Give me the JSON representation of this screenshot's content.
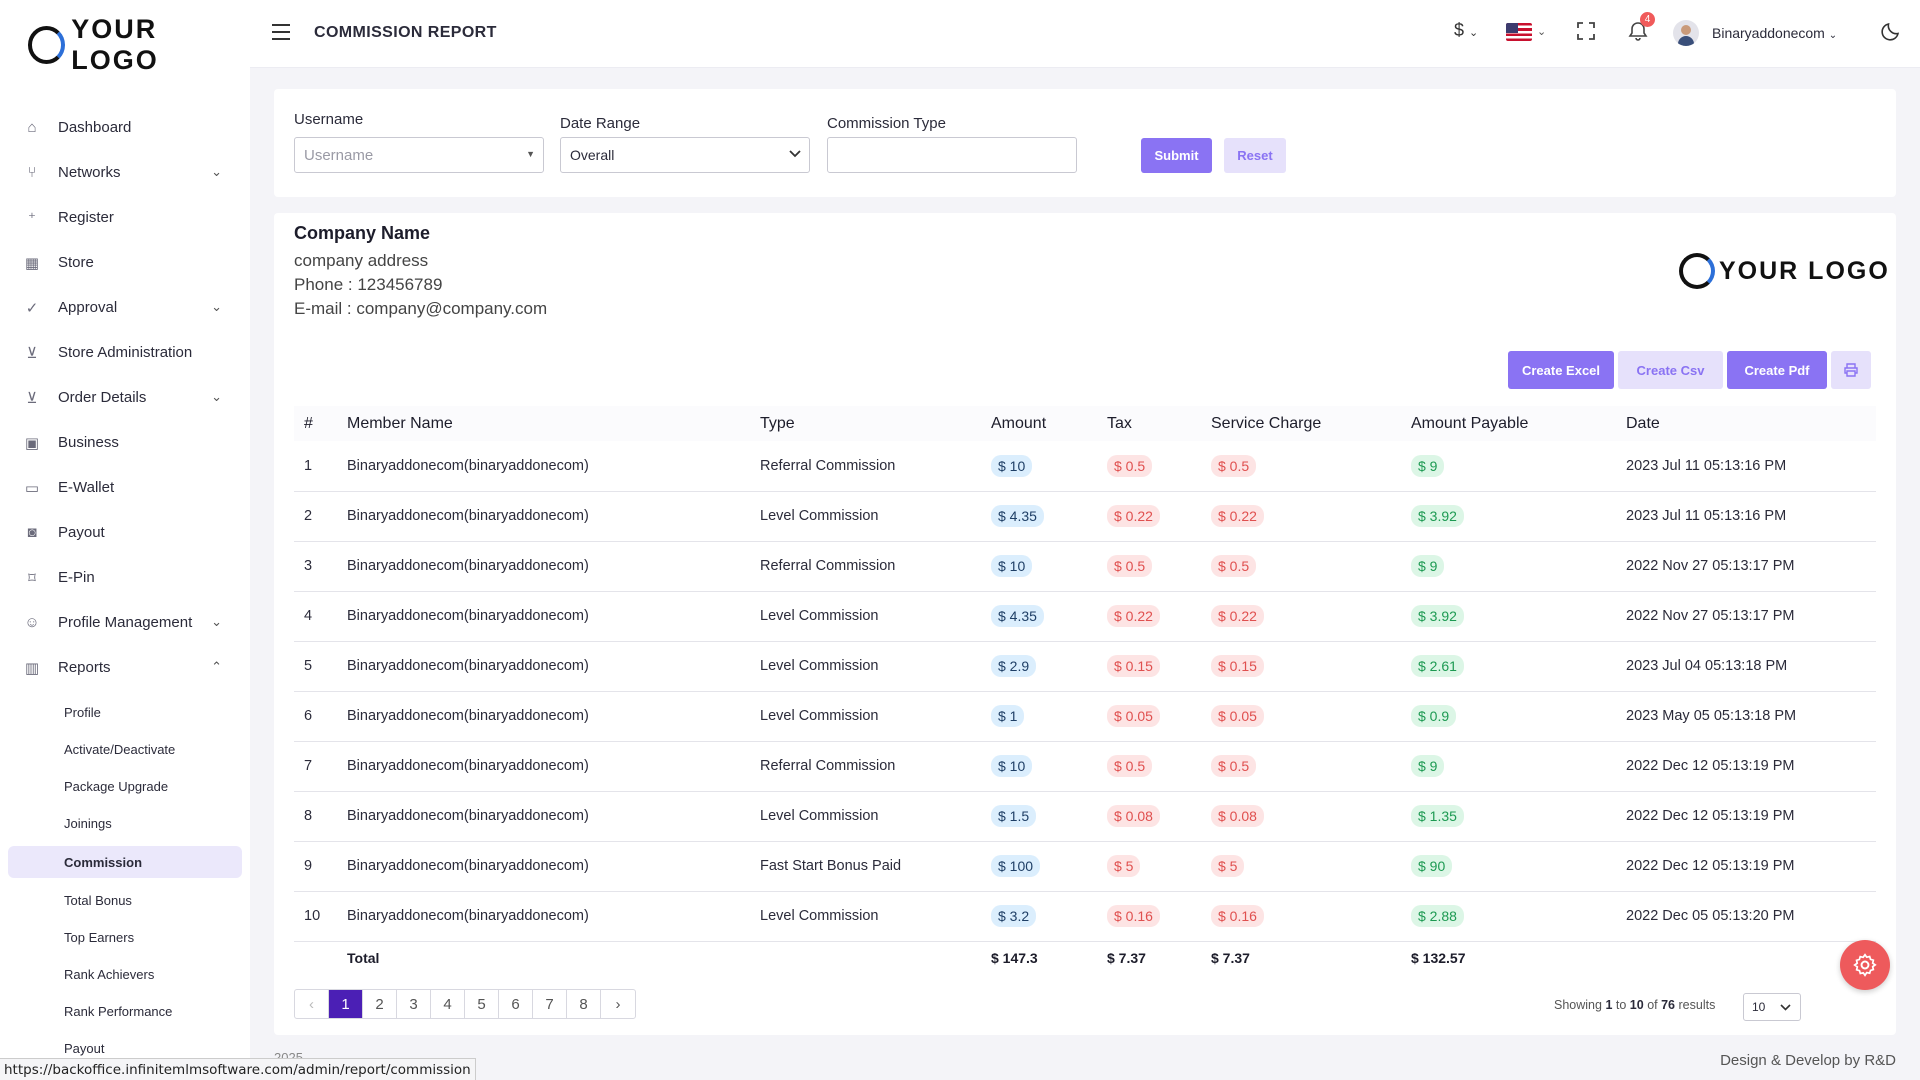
{
  "logo": {
    "text": "YOUR LOGO"
  },
  "sidebar": {
    "items": [
      {
        "label": "Dashboard",
        "icon": "home-icon"
      },
      {
        "label": "Networks",
        "icon": "network-icon",
        "chevron": "down"
      },
      {
        "label": "Register",
        "icon": "user-plus-icon"
      },
      {
        "label": "Store",
        "icon": "store-icon"
      },
      {
        "label": "Approval",
        "icon": "user-check-icon",
        "chevron": "down"
      },
      {
        "label": "Store Administration",
        "icon": "cart-icon"
      },
      {
        "label": "Order Details",
        "icon": "cart-outline-icon",
        "chevron": "down"
      },
      {
        "label": "Business",
        "icon": "briefcase-icon"
      },
      {
        "label": "E-Wallet",
        "icon": "wallet-icon"
      },
      {
        "label": "Payout",
        "icon": "payout-icon"
      },
      {
        "label": "E-Pin",
        "icon": "pin-icon"
      },
      {
        "label": "Profile Management",
        "icon": "user-icon",
        "chevron": "down"
      },
      {
        "label": "Reports",
        "icon": "bar-chart-icon",
        "chevron": "up"
      }
    ],
    "subitems": [
      {
        "label": "Profile"
      },
      {
        "label": "Activate/Deactivate"
      },
      {
        "label": "Package Upgrade"
      },
      {
        "label": "Joinings"
      },
      {
        "label": "Commission",
        "active": true
      },
      {
        "label": "Total Bonus"
      },
      {
        "label": "Top Earners"
      },
      {
        "label": "Rank Achievers"
      },
      {
        "label": "Rank Performance"
      },
      {
        "label": "Payout"
      }
    ]
  },
  "header": {
    "title": "COMMISSION REPORT",
    "currency": "$",
    "notification_count": "4",
    "username": "Binaryaddonecom"
  },
  "filter": {
    "username_label": "Username",
    "username_placeholder": "Username",
    "date_range_label": "Date Range",
    "date_range_value": "Overall",
    "commission_type_label": "Commission Type",
    "commission_type_value": "",
    "submit_label": "Submit",
    "reset_label": "Reset"
  },
  "company": {
    "name": "Company Name",
    "address": "company address",
    "phone": "Phone : 123456789",
    "email": "E-mail : company@company.com"
  },
  "export": {
    "excel": "Create Excel",
    "csv": "Create Csv",
    "pdf": "Create Pdf"
  },
  "table": {
    "headers": [
      "#",
      "Member Name",
      "Type",
      "Amount",
      "Tax",
      "Service Charge",
      "Amount Payable",
      "Date"
    ],
    "rows": [
      {
        "n": "1",
        "member": "Binaryaddonecom(binaryaddonecom)",
        "type": "Referral Commission",
        "amount": "$ 10",
        "tax": "$ 0.5",
        "service": "$ 0.5",
        "payable": "$ 9",
        "date": "2023 Jul 11 05:13:16 PM"
      },
      {
        "n": "2",
        "member": "Binaryaddonecom(binaryaddonecom)",
        "type": "Level Commission",
        "amount": "$ 4.35",
        "tax": "$ 0.22",
        "service": "$ 0.22",
        "payable": "$ 3.92",
        "date": "2023 Jul 11 05:13:16 PM"
      },
      {
        "n": "3",
        "member": "Binaryaddonecom(binaryaddonecom)",
        "type": "Referral Commission",
        "amount": "$ 10",
        "tax": "$ 0.5",
        "service": "$ 0.5",
        "payable": "$ 9",
        "date": "2022 Nov 27 05:13:17 PM"
      },
      {
        "n": "4",
        "member": "Binaryaddonecom(binaryaddonecom)",
        "type": "Level Commission",
        "amount": "$ 4.35",
        "tax": "$ 0.22",
        "service": "$ 0.22",
        "payable": "$ 3.92",
        "date": "2022 Nov 27 05:13:17 PM"
      },
      {
        "n": "5",
        "member": "Binaryaddonecom(binaryaddonecom)",
        "type": "Level Commission",
        "amount": "$ 2.9",
        "tax": "$ 0.15",
        "service": "$ 0.15",
        "payable": "$ 2.61",
        "date": "2023 Jul 04 05:13:18 PM"
      },
      {
        "n": "6",
        "member": "Binaryaddonecom(binaryaddonecom)",
        "type": "Level Commission",
        "amount": "$ 1",
        "tax": "$ 0.05",
        "service": "$ 0.05",
        "payable": "$ 0.9",
        "date": "2023 May 05 05:13:18 PM"
      },
      {
        "n": "7",
        "member": "Binaryaddonecom(binaryaddonecom)",
        "type": "Referral Commission",
        "amount": "$ 10",
        "tax": "$ 0.5",
        "service": "$ 0.5",
        "payable": "$ 9",
        "date": "2022 Dec 12 05:13:19 PM"
      },
      {
        "n": "8",
        "member": "Binaryaddonecom(binaryaddonecom)",
        "type": "Level Commission",
        "amount": "$ 1.5",
        "tax": "$ 0.08",
        "service": "$ 0.08",
        "payable": "$ 1.35",
        "date": "2022 Dec 12 05:13:19 PM"
      },
      {
        "n": "9",
        "member": "Binaryaddonecom(binaryaddonecom)",
        "type": "Fast Start Bonus Paid",
        "amount": "$ 100",
        "tax": "$ 5",
        "service": "$ 5",
        "payable": "$ 90",
        "date": "2022 Dec 12 05:13:19 PM"
      },
      {
        "n": "10",
        "member": "Binaryaddonecom(binaryaddonecom)",
        "type": "Level Commission",
        "amount": "$ 3.2",
        "tax": "$ 0.16",
        "service": "$ 0.16",
        "payable": "$ 2.88",
        "date": "2022 Dec 05 05:13:20 PM"
      }
    ],
    "total": {
      "label": "Total",
      "amount": "$ 147.3",
      "tax": "$ 7.37",
      "service": "$ 7.37",
      "payable": "$ 132.57"
    }
  },
  "pagination": {
    "prev": "‹",
    "pages": [
      "1",
      "2",
      "3",
      "4",
      "5",
      "6",
      "7",
      "8"
    ],
    "current": "1",
    "next": "›",
    "showing_prefix": "Showing",
    "from": "1",
    "to_word": "to",
    "to": "10",
    "of_word": "of",
    "total": "76",
    "results_word": "results",
    "per_page": "10"
  },
  "footer": {
    "left": "2025",
    "right": "Design & Develop by R&D"
  },
  "status_url": "https://backoffice.infinitemlmsoftware.com/admin/report/commission",
  "colors": {
    "accent": "#8a73f3",
    "accent_light": "#e6e1fb",
    "page_active": "#4b1fb5",
    "fab": "#ee5a5c"
  }
}
